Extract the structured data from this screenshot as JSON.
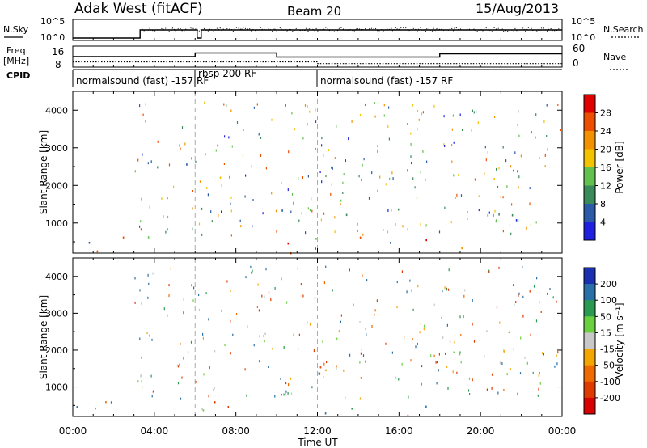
{
  "header": {
    "station": "Adak West (fitACF)",
    "beam": "Beam 20",
    "date": "15/Aug/2013"
  },
  "top_panels": {
    "nsky_label": "N.Sky",
    "nsearch_label": "N.Search",
    "nsky_ticks": [
      "10^5",
      "10^0"
    ],
    "nsearch_ticks": [
      "10^5",
      "10^0"
    ],
    "freq_label_1": "Freq.",
    "freq_label_2": "[MHz]",
    "freq_ticks": [
      "16",
      "8"
    ],
    "nave_label": "Nave",
    "nave_ticks": [
      "60",
      "0"
    ],
    "cpid_label": "CPID",
    "cpid_segments": [
      {
        "label": "normalsound (fast) -157 RF",
        "start_h": 0.0
      },
      {
        "label": "rbsp 200 RF",
        "start_h": 6.0
      },
      {
        "label": "normalsound (fast) -157 RF",
        "start_h": 12.0
      }
    ]
  },
  "colorbars": {
    "power": {
      "label": "Power [dB]",
      "ticks": [
        "28",
        "24",
        "20",
        "16",
        "12",
        "8",
        "4"
      ],
      "colors": [
        "#e00000",
        "#ee4e00",
        "#f39200",
        "#f3c300",
        "#63c24f",
        "#3a8a5a",
        "#2a5aa8",
        "#2020e0"
      ]
    },
    "velocity": {
      "label": "Velocity [m s⁻¹]",
      "ticks": [
        "200",
        "100",
        "50",
        "15",
        "-15",
        "-50",
        "-100",
        "-200"
      ],
      "colors": [
        "#1a30b0",
        "#2a70a8",
        "#2a9a50",
        "#6ad040",
        "#c8c8c8",
        "#f3a500",
        "#ef6a00",
        "#e03a00",
        "#d80000"
      ]
    }
  },
  "chart_data": [
    {
      "type": "line",
      "title": "Adak West (fitACF)  Beam 20  15/Aug/2013",
      "xlabel": "Time UT",
      "xlim": [
        0,
        24
      ],
      "series": [
        {
          "name": "N.Sky",
          "x": [
            0,
            3.3,
            3.3,
            5.9,
            6.1,
            6.3,
            24
          ],
          "y": [
            1,
            1,
            100000,
            100000,
            1,
            100000,
            100000
          ]
        },
        {
          "name": "Freq.",
          "x": [
            0,
            6,
            6,
            10,
            10,
            18,
            18,
            24
          ],
          "y": [
            11.5,
            11.5,
            13.4,
            13.4,
            11.3,
            11.3,
            13.0,
            13.0
          ]
        },
        {
          "name": "Nave",
          "x": [
            0,
            12,
            12,
            24
          ],
          "y": [
            15,
            15,
            10,
            10
          ]
        }
      ]
    },
    {
      "type": "heatmap",
      "title": "Power",
      "xlabel": "",
      "ylabel": "Slant Range [km]",
      "xlim": [
        0,
        24
      ],
      "ylim": [
        200,
        4500
      ],
      "x_ticks": [
        "00:00",
        "04:00",
        "08:00",
        "12:00",
        "16:00",
        "20:00",
        "00:00"
      ],
      "y_ticks": [
        1000,
        2000,
        3000,
        4000
      ],
      "colorbar": "Power [dB]",
      "features": [
        {
          "t": [
            3.5,
            6.0
          ],
          "r": [
            2200,
            2700
          ],
          "val": 10
        },
        {
          "t": [
            6.0,
            9.5
          ],
          "r": [
            1900,
            2600
          ],
          "val": 20
        },
        {
          "t": [
            7.8,
            10.5
          ],
          "r": [
            1300,
            1600
          ],
          "val": 10
        },
        {
          "t": [
            9.5,
            11.3
          ],
          "r": [
            800,
            1500
          ],
          "val": 22
        },
        {
          "t": [
            12.0,
            14.2
          ],
          "r": [
            900,
            1500
          ],
          "val": 16
        },
        {
          "t": [
            14.0,
            16.4
          ],
          "r": [
            1300,
            1500
          ],
          "val": 10
        },
        {
          "t": [
            18.0,
            22.5
          ],
          "r": [
            1700,
            2600
          ],
          "val": 14
        },
        {
          "t": [
            18.5,
            23.0
          ],
          "r": [
            900,
            1600
          ],
          "val": 6
        },
        {
          "t": [
            0.0,
            24.0
          ],
          "r": [
            200,
            650
          ],
          "val": 12
        }
      ]
    },
    {
      "type": "heatmap",
      "title": "Velocity",
      "xlabel": "Time UT",
      "ylabel": "Slant Range [km]",
      "xlim": [
        0,
        24
      ],
      "ylim": [
        200,
        4500
      ],
      "x_ticks": [
        "00:00",
        "04:00",
        "08:00",
        "12:00",
        "16:00",
        "20:00",
        "00:00"
      ],
      "y_ticks": [
        1000,
        2000,
        3000,
        4000
      ],
      "colorbar": "Velocity [m s⁻¹]",
      "features": [
        {
          "t": [
            3.5,
            10.0
          ],
          "r": [
            1900,
            2600
          ],
          "val": 0
        },
        {
          "t": [
            9.5,
            11.5
          ],
          "r": [
            800,
            1400
          ],
          "val": -70
        },
        {
          "t": [
            11.5,
            15.0
          ],
          "r": [
            1000,
            1500
          ],
          "val": -60
        },
        {
          "t": [
            14.5,
            16.4
          ],
          "r": [
            1300,
            1450
          ],
          "val": 30
        },
        {
          "t": [
            18.0,
            23.5
          ],
          "r": [
            1500,
            2600
          ],
          "val": 0
        },
        {
          "t": [
            21.5,
            23.0
          ],
          "r": [
            3300,
            3500
          ],
          "val": -150
        },
        {
          "t": [
            0.0,
            24.0
          ],
          "r": [
            200,
            650
          ],
          "val": -15
        }
      ]
    }
  ]
}
